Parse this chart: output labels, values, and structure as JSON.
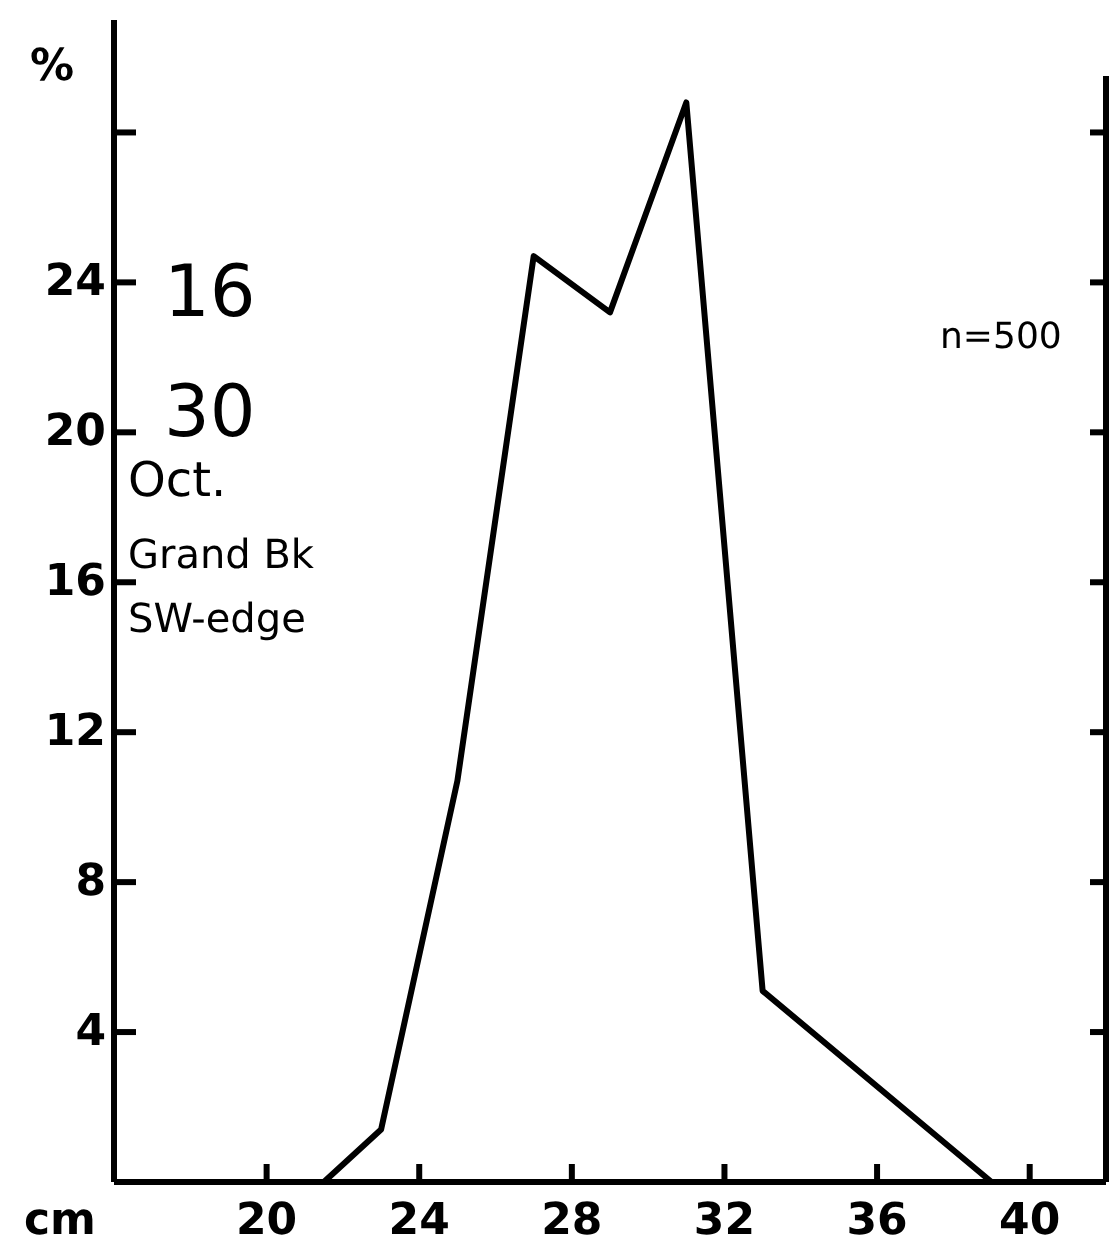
{
  "chart_data": {
    "type": "line",
    "xlabel": "cm",
    "ylabel": "%",
    "x": [
      21.5,
      23,
      25,
      27,
      29,
      31,
      33,
      39
    ],
    "values": [
      0,
      1.4,
      10.7,
      24.7,
      23.2,
      28.8,
      5.1,
      0
    ],
    "color": "#000000",
    "marker": "none",
    "line_style": "solid",
    "grid": false,
    "xlim": [
      16,
      42
    ],
    "xticks": [
      20,
      24,
      28,
      32,
      36,
      40
    ],
    "ylim": [
      0,
      31
    ],
    "yticks": [
      4,
      8,
      12,
      16,
      20,
      24,
      {
        "value": 28,
        "label": null
      }
    ],
    "annotations": [
      "16",
      "30",
      "Oct.",
      "Grand Bk",
      "SW-edge",
      "n=500"
    ]
  }
}
